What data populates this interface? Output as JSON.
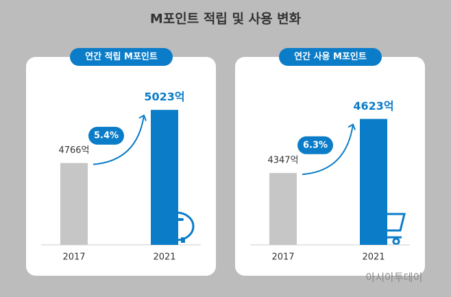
{
  "title": "M포인트 적립 및 사용 변화",
  "watermark": "아시아투데이",
  "chart_data": [
    {
      "type": "bar",
      "title": "연간 적립 M포인트",
      "categories": [
        "2017",
        "2021"
      ],
      "values": [
        4766,
        5023
      ],
      "value_labels": [
        "4766억",
        "5023억"
      ],
      "colors": [
        "#c6c6c6",
        "#0a7cc8"
      ],
      "annotation": "5.4%",
      "ylim": [
        4370,
        5090
      ]
    },
    {
      "type": "bar",
      "title": "연간 사용 M포인트",
      "categories": [
        "2017",
        "2021"
      ],
      "values": [
        4347,
        4623
      ],
      "value_labels": [
        "4347억",
        "4623억"
      ],
      "colors": [
        "#c6c6c6",
        "#0a7cc8"
      ],
      "annotation": "6.3%",
      "ylim": [
        3980,
        4740
      ]
    }
  ]
}
